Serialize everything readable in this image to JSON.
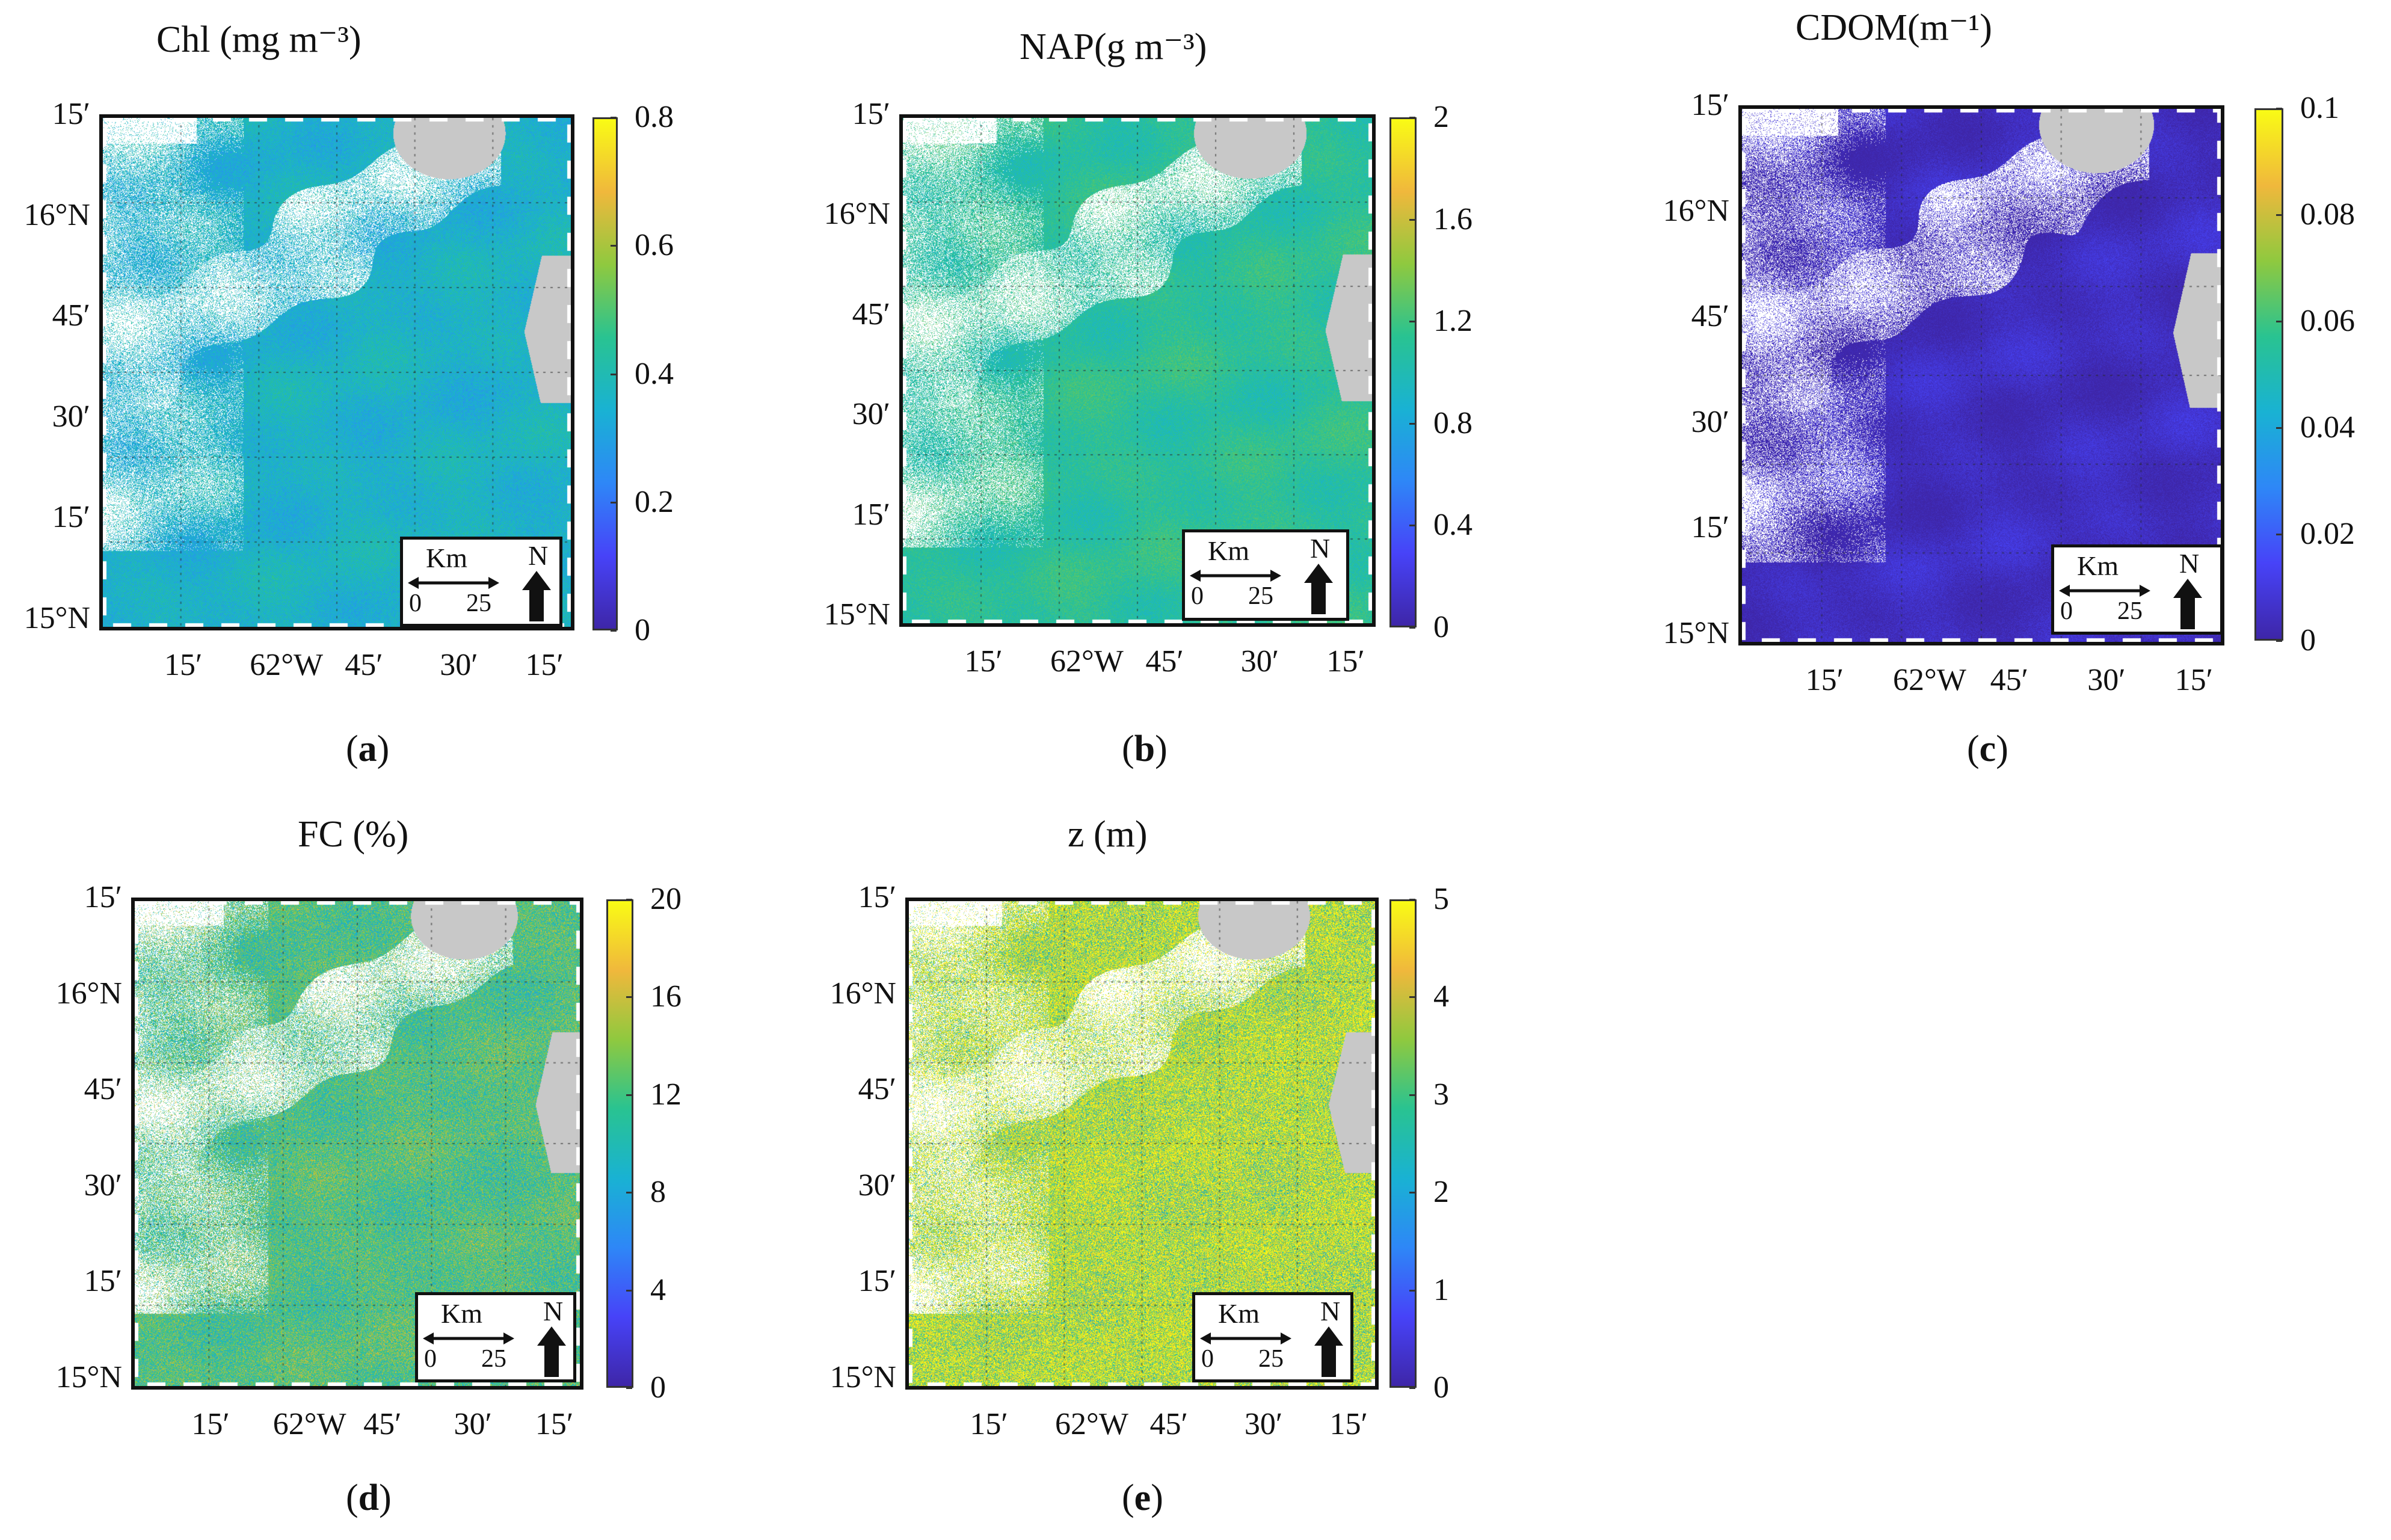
{
  "panels": [
    {
      "id": "a",
      "title": "Chl (mg m⁻³)",
      "caption_letter": "a",
      "colorbar_ticks": [
        "0",
        "0.2",
        "0.4",
        "0.6",
        "0.8"
      ],
      "mean_level": 0.45,
      "noise": 0.1
    },
    {
      "id": "b",
      "title": "NAP(g m⁻³)",
      "caption_letter": "b",
      "colorbar_ticks": [
        "0",
        "0.4",
        "0.8",
        "1.2",
        "1.6",
        "2"
      ],
      "mean_level": 0.55,
      "noise": 0.08
    },
    {
      "id": "c",
      "title": "CDOM(m⁻¹)",
      "caption_letter": "c",
      "colorbar_ticks": [
        "0",
        "0.02",
        "0.04",
        "0.06",
        "0.08",
        "0.1"
      ],
      "mean_level": 0.04,
      "noise": 0.05
    },
    {
      "id": "d",
      "title": "FC (%)",
      "caption_letter": "d",
      "colorbar_ticks": [
        "0",
        "4",
        "8",
        "12",
        "16",
        "20"
      ],
      "mean_level": 0.6,
      "noise": 0.22
    },
    {
      "id": "e",
      "title": "z (m)",
      "caption_letter": "e",
      "colorbar_ticks": [
        "0",
        "1",
        "2",
        "3",
        "4",
        "5"
      ],
      "mean_level": 0.85,
      "noise": 0.45
    }
  ],
  "axes": {
    "y_labels": [
      "15′",
      "16°N",
      "45′",
      "30′",
      "15′",
      "15°N"
    ],
    "x_labels": [
      "15′",
      "62°W",
      "45′",
      "30′",
      "15′"
    ]
  },
  "legend": {
    "unit": "Km",
    "start": "0",
    "end": "25",
    "north": "N"
  },
  "colors": {
    "land": "#c8c8c8",
    "cloud": "#ffffff",
    "frame": "#111111"
  }
}
